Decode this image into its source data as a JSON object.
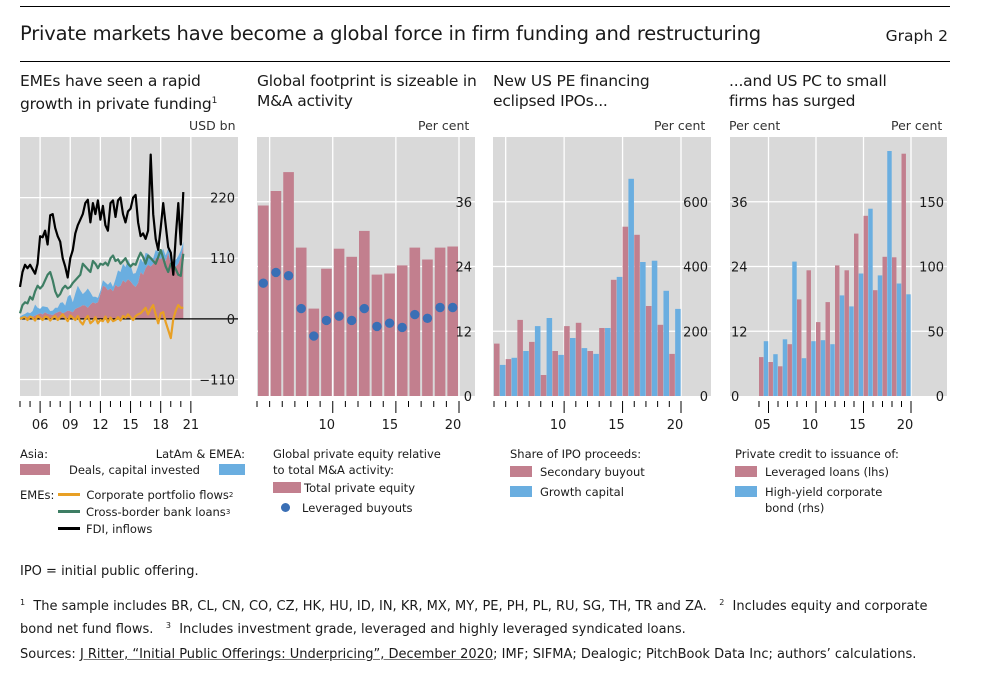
{
  "header": {
    "title": "Private markets have become a global force in firm funding and restructuring",
    "graph_number": "Graph 2"
  },
  "colors": {
    "panel_bg": "#d9d9d9",
    "pink": "#c27f8e",
    "blue": "#6aaee0",
    "dot_blue": "#3a6fb5",
    "green": "#3e7e64",
    "orange": "#e8a025",
    "black": "#000000"
  },
  "panels": [
    {
      "title": "EMEs have seen a rapid growth in private funding",
      "title_sup": "1",
      "unit_right": "USD bn",
      "legend": {
        "asia_label": "Asia:",
        "latam_label": "LatAm & EMEA:",
        "deals_label": "Deals, capital invested",
        "emes_label": "EMEs:",
        "portfolio_label": "Corporate portfolio flows",
        "portfolio_sup": "2",
        "bank_label": "Cross-border bank loans",
        "bank_sup": "3",
        "fdi_label": "FDI, inflows"
      }
    },
    {
      "title": "Global footprint is sizeable in M&A activity",
      "unit_right": "Per cent",
      "legend": {
        "heading_1": "Global private equity relative",
        "heading_2": "to total M&A activity:",
        "total_label": "Total private equity",
        "lbo_label": "Leveraged buyouts"
      }
    },
    {
      "title": "New US PE financing eclipsed IPOs...",
      "unit_right": "Per cent",
      "legend": {
        "heading": "Share of IPO proceeds:",
        "secondary_label": "Secondary buyout",
        "growth_label": "Growth capital"
      }
    },
    {
      "title": "...and US PC to small firms has surged",
      "unit_left": "Per cent",
      "unit_right": "Per cent",
      "legend": {
        "heading": "Private credit to issuance of:",
        "lev_label": "Leveraged loans (lhs)",
        "hy_label_1": "High-yield corporate",
        "hy_label_2": "bond (rhs)"
      }
    }
  ],
  "footnotes": {
    "abbrev": "IPO = initial public offering.",
    "note1_num": "1",
    "note1": "The sample includes BR, CL, CN, CO, CZ, HK, HU, ID, IN, KR, MX, MY, PE, PH, PL, RU, SG, TH, TR and ZA.",
    "note2_num": "2",
    "note2": "Includes equity and corporate bond net fund flows.",
    "note3_num": "3",
    "note3": "Includes investment grade, leveraged and highly leveraged syndicated loans.",
    "sources_prefix": "Sources: ",
    "sources_link": "J Ritter, “Initial Public Offerings: Underpricing”, December 2020",
    "sources_rest": "; IMF; SIFMA; Dealogic; PitchBook Data Inc; authors’ calculations."
  },
  "chart_data": [
    {
      "type": "area",
      "title": "EMEs have seen a rapid growth in private funding",
      "ylabel": "USD bn",
      "axis": "right",
      "ylim": [
        -140,
        330
      ],
      "yticks": [
        -110,
        0,
        110,
        220
      ],
      "x_start": 2004.0,
      "x_step": 0.25,
      "xlim": [
        2004,
        2025.8
      ],
      "xticks": [
        2006,
        2009,
        2012,
        2015,
        2018,
        2021
      ],
      "xtick_labels": [
        "06",
        "09",
        "12",
        "15",
        "18",
        "21"
      ],
      "stacked_areas": [
        {
          "name": "Asia: Deals, capital invested",
          "color": "pink",
          "values": [
            2,
            3,
            3,
            4,
            5,
            4,
            6,
            8,
            10,
            8,
            12,
            9,
            8,
            7,
            10,
            12,
            14,
            10,
            12,
            15,
            14,
            12,
            18,
            20,
            22,
            25,
            24,
            20,
            26,
            30,
            28,
            30,
            45,
            60,
            58,
            52,
            55,
            50,
            62,
            58,
            60,
            70,
            66,
            72,
            68,
            62,
            58,
            65,
            85,
            80,
            92,
            98,
            95,
            100,
            110,
            112,
            108,
            115,
            105,
            120,
            100,
            90,
            95,
            100,
            112,
            130
          ]
        },
        {
          "name": "LatAm & EMEA: Deals, capital invested",
          "color": "blue",
          "values": [
            2,
            4,
            6,
            8,
            5,
            10,
            20,
            12,
            8,
            15,
            10,
            12,
            6,
            8,
            10,
            8,
            15,
            20,
            12,
            25,
            30,
            18,
            28,
            40,
            30,
            20,
            25,
            35,
            22,
            10,
            12,
            8,
            6,
            10,
            8,
            10,
            12,
            8,
            10,
            30,
            25,
            30,
            28,
            35,
            30,
            20,
            25,
            30,
            25,
            22,
            28,
            20,
            18,
            10,
            15,
            10,
            12,
            12,
            10,
            8,
            10,
            10,
            12,
            14,
            12,
            10
          ]
        }
      ],
      "series": [
        {
          "name": "FDI, inflows",
          "color": "black",
          "values": [
            58,
            85,
            98,
            92,
            98,
            90,
            82,
            100,
            150,
            148,
            160,
            135,
            188,
            190,
            165,
            150,
            140,
            110,
            95,
            75,
            110,
            125,
            155,
            170,
            180,
            190,
            210,
            216,
            175,
            210,
            190,
            215,
            180,
            205,
            170,
            160,
            210,
            215,
            185,
            215,
            220,
            190,
            175,
            195,
            200,
            220,
            225,
            175,
            150,
            155,
            145,
            160,
            298,
            190,
            145,
            125,
            165,
            210,
            170,
            130,
            120,
            80,
            150,
            210,
            135,
            230
          ]
        },
        {
          "name": "Cross-border bank loans",
          "color": "green",
          "values": [
            10,
            25,
            30,
            28,
            40,
            35,
            50,
            60,
            55,
            60,
            70,
            80,
            85,
            70,
            50,
            40,
            45,
            55,
            60,
            55,
            58,
            65,
            70,
            75,
            80,
            100,
            95,
            90,
            85,
            105,
            100,
            92,
            100,
            98,
            102,
            97,
            110,
            115,
            105,
            108,
            100,
            105,
            110,
            100,
            95,
            100,
            98,
            110,
            120,
            112,
            100,
            115,
            110,
            105,
            100,
            112,
            125,
            110,
            95,
            85,
            100,
            98,
            90,
            80,
            78,
            118
          ]
        },
        {
          "name": "Corporate portfolio flows",
          "color": "orange",
          "values": [
            0,
            2,
            3,
            -2,
            4,
            2,
            -3,
            5,
            2,
            -2,
            4,
            3,
            -3,
            2,
            5,
            -2,
            3,
            8,
            2,
            -4,
            6,
            2,
            -2,
            5,
            -5,
            -10,
            0,
            5,
            -8,
            -4,
            3,
            -8,
            -2,
            -4,
            4,
            -6,
            2,
            -4,
            -2,
            3,
            -3,
            5,
            2,
            8,
            3,
            -2,
            5,
            8,
            10,
            15,
            20,
            8,
            18,
            25,
            8,
            -8,
            10,
            12,
            -6,
            -20,
            -35,
            0,
            15,
            25,
            20,
            20
          ]
        }
      ]
    },
    {
      "type": "bar",
      "title": "Global footprint is sizeable in M&A activity",
      "ylabel": "Per cent",
      "axis": "right",
      "ylim": [
        0,
        48
      ],
      "yticks": [
        0,
        12,
        24,
        36
      ],
      "categories": [
        "2005",
        "2006",
        "2007",
        "2008",
        "2009",
        "2010",
        "2011",
        "2012",
        "2013",
        "2014",
        "2015",
        "2016",
        "2017",
        "2018",
        "2019",
        "2020"
      ],
      "xtick_labels": {
        "2010": "10",
        "2015": "15",
        "2020": "20"
      },
      "series": [
        {
          "name": "Total private equity",
          "kind": "bar",
          "color": "pink",
          "values": [
            35.3,
            38.0,
            41.5,
            27.5,
            16.2,
            23.6,
            27.3,
            25.8,
            30.6,
            22.5,
            22.7,
            24.2,
            27.5,
            25.3,
            27.5,
            27.7
          ]
        },
        {
          "name": "Leveraged buyouts",
          "kind": "dot",
          "color": "dot_blue",
          "values": [
            20.9,
            22.9,
            22.3,
            16.2,
            11.1,
            14.0,
            14.8,
            14.0,
            16.2,
            12.9,
            13.5,
            12.7,
            15.1,
            14.4,
            16.4,
            16.4
          ]
        }
      ]
    },
    {
      "type": "bar",
      "title": "New US PE financing eclipsed IPOs...",
      "ylabel": "Per cent",
      "axis": "right",
      "ylim": [
        0,
        800
      ],
      "yticks": [
        0,
        200,
        400,
        600
      ],
      "categories": [
        "2005",
        "2006",
        "2007",
        "2008",
        "2009",
        "2010",
        "2011",
        "2012",
        "2013",
        "2014",
        "2015",
        "2016",
        "2017",
        "2018",
        "2019",
        "2020"
      ],
      "xtick_labels": {
        "2010": "10",
        "2015": "15",
        "2020": "20"
      },
      "series": [
        {
          "name": "Secondary buyout",
          "color": "pink",
          "values": [
            162,
            114,
            235,
            167,
            65,
            139,
            216,
            226,
            139,
            210,
            359,
            523,
            498,
            278,
            220,
            130
          ]
        },
        {
          "name": "Growth capital",
          "color": "blue",
          "values": [
            96,
            118,
            139,
            216,
            241,
            127,
            179,
            148,
            130,
            210,
            368,
            671,
            414,
            418,
            325,
            269
          ]
        }
      ]
    },
    {
      "type": "bar",
      "title": "...and US PC to small firms has surged",
      "ylabel_left": "Per cent",
      "ylabel_right": "Per cent",
      "ylim_left": [
        0,
        48
      ],
      "yticks_left": [
        0,
        12,
        24,
        36
      ],
      "ylim_right": [
        0,
        200
      ],
      "yticks_right": [
        0,
        50,
        100,
        150
      ],
      "categories": [
        "2005",
        "2006",
        "2007",
        "2008",
        "2009",
        "2010",
        "2011",
        "2012",
        "2013",
        "2014",
        "2015",
        "2016",
        "2017",
        "2018",
        "2019",
        "2020"
      ],
      "xtick_labels": {
        "2005": "05",
        "2010": "10",
        "2015": "15",
        "2020": "20"
      },
      "series": [
        {
          "name": "Leveraged loans (lhs)",
          "axis": "left",
          "color": "pink",
          "values": [
            7.2,
            6.3,
            5.5,
            9.6,
            17.9,
            23.3,
            13.7,
            17.4,
            24.2,
            23.3,
            30.1,
            33.4,
            19.6,
            25.8,
            25.7,
            44.9
          ]
        },
        {
          "name": "High-yield corporate bond (rhs)",
          "axis": "right",
          "color": "blue",
          "values": [
            42.3,
            32.3,
            43.8,
            103.8,
            29.2,
            42.3,
            43.1,
            40.0,
            77.7,
            69.2,
            94.6,
            144.6,
            93.1,
            189.2,
            86.9,
            78.5
          ]
        }
      ]
    }
  ]
}
